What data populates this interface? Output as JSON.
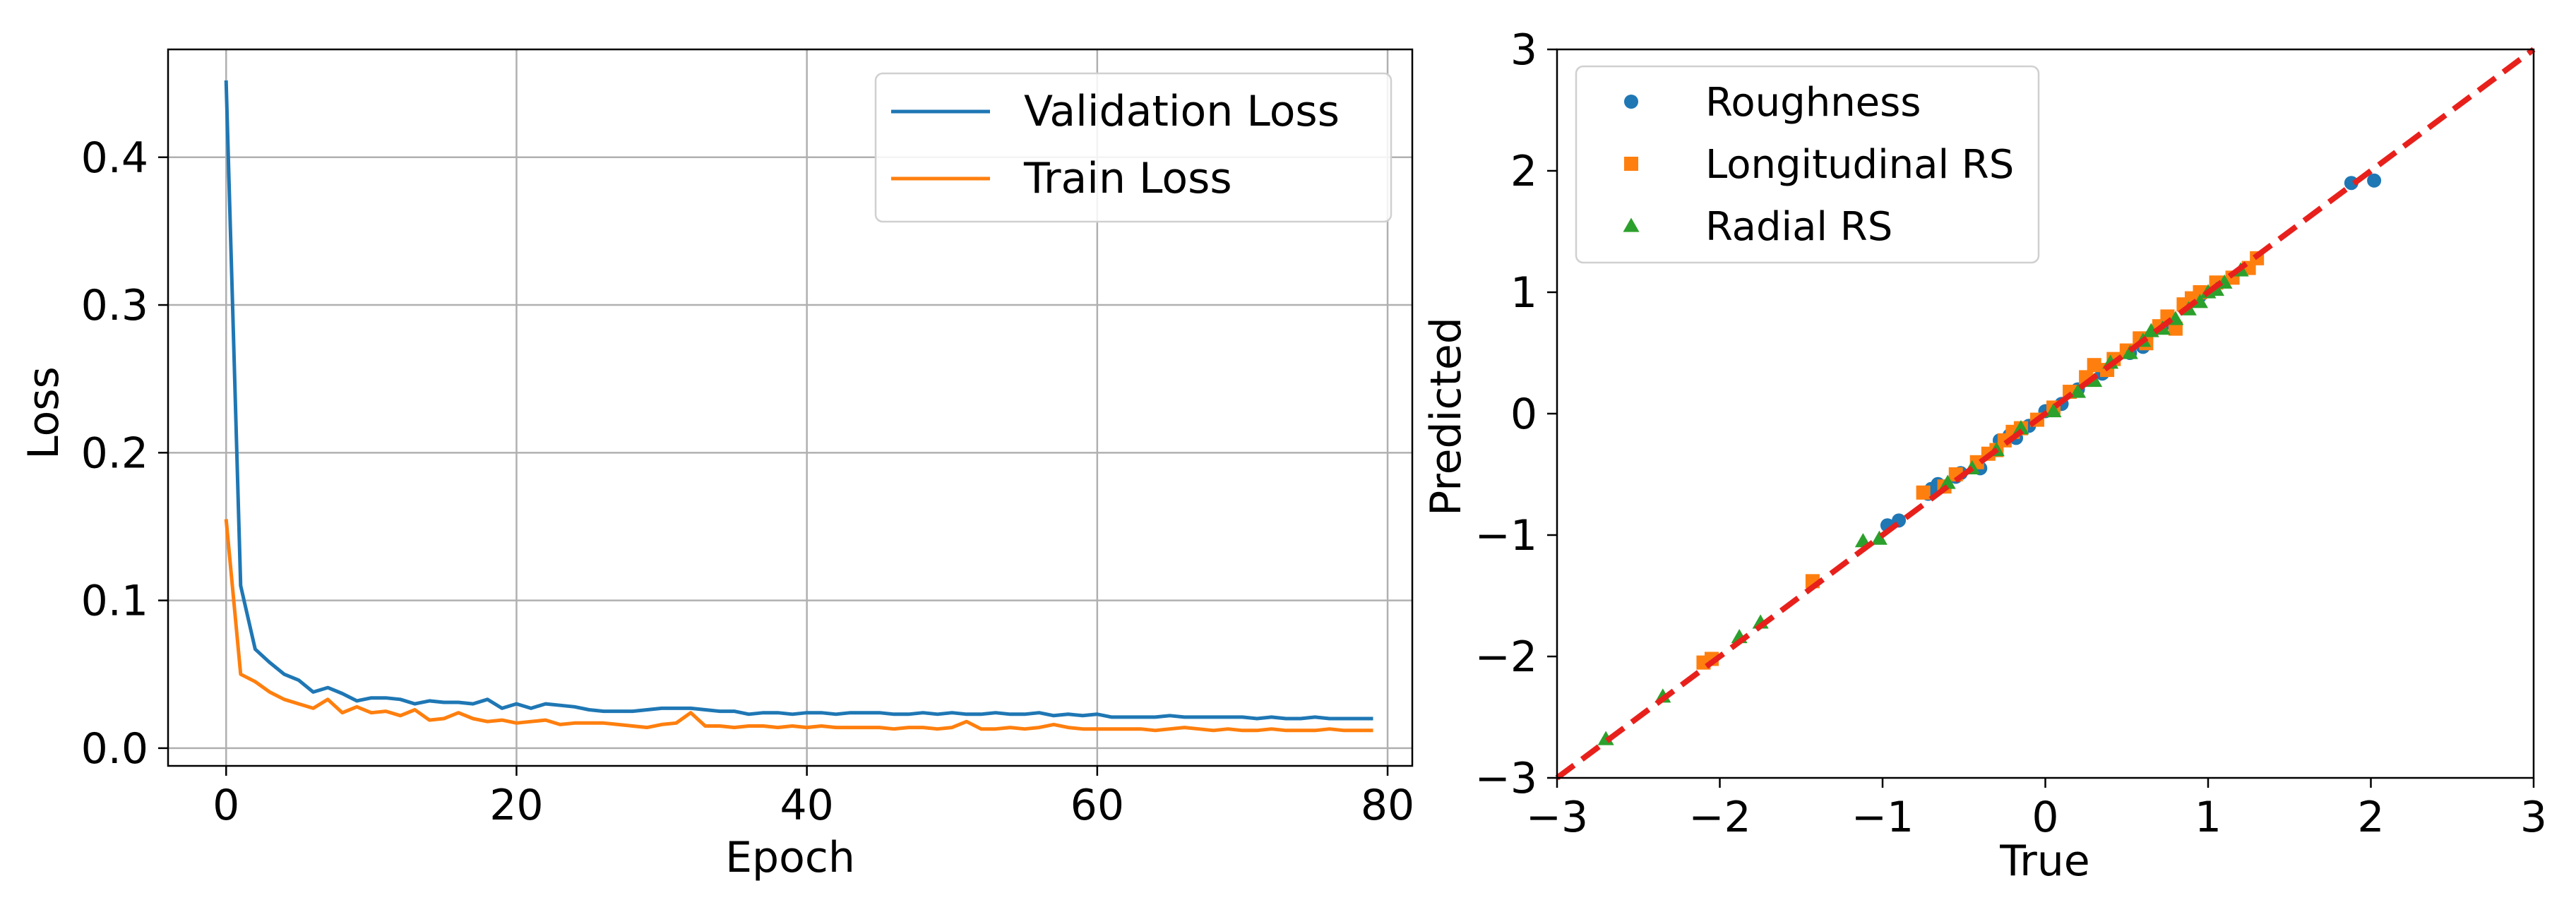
{
  "chart_data": [
    {
      "type": "line",
      "xlabel": "Epoch",
      "ylabel": "Loss",
      "xlim": [
        -4,
        81.7
      ],
      "ylim": [
        -0.012,
        0.473
      ],
      "xticks": [
        0,
        20,
        40,
        60,
        80
      ],
      "yticks": [
        0.0,
        0.1,
        0.2,
        0.3,
        0.4
      ],
      "xtick_labels": [
        "0",
        "20",
        "40",
        "60",
        "80"
      ],
      "ytick_labels": [
        "0.0",
        "0.1",
        "0.2",
        "0.3",
        "0.4"
      ],
      "grid": true,
      "legend_location": "upper right",
      "series": [
        {
          "name": "Validation Loss",
          "color": "#1f77b4",
          "x": [
            0,
            1,
            2,
            3,
            4,
            5,
            6,
            7,
            8,
            9,
            10,
            11,
            12,
            13,
            14,
            15,
            16,
            17,
            18,
            19,
            20,
            21,
            22,
            23,
            24,
            25,
            26,
            27,
            28,
            29,
            30,
            31,
            32,
            33,
            34,
            35,
            36,
            37,
            38,
            39,
            40,
            41,
            42,
            43,
            44,
            45,
            46,
            47,
            48,
            49,
            50,
            51,
            52,
            53,
            54,
            55,
            56,
            57,
            58,
            59,
            60,
            61,
            62,
            63,
            64,
            65,
            66,
            67,
            68,
            69,
            70,
            71,
            72,
            73,
            74,
            75,
            76,
            77,
            78,
            79
          ],
          "values": [
            0.452,
            0.11,
            0.067,
            0.058,
            0.05,
            0.046,
            0.038,
            0.041,
            0.037,
            0.032,
            0.034,
            0.034,
            0.033,
            0.03,
            0.032,
            0.031,
            0.031,
            0.03,
            0.033,
            0.027,
            0.03,
            0.027,
            0.03,
            0.029,
            0.028,
            0.026,
            0.025,
            0.025,
            0.025,
            0.026,
            0.027,
            0.027,
            0.027,
            0.026,
            0.025,
            0.025,
            0.023,
            0.024,
            0.024,
            0.023,
            0.024,
            0.024,
            0.023,
            0.024,
            0.024,
            0.024,
            0.023,
            0.023,
            0.024,
            0.023,
            0.024,
            0.023,
            0.023,
            0.024,
            0.023,
            0.023,
            0.024,
            0.022,
            0.023,
            0.022,
            0.023,
            0.021,
            0.021,
            0.021,
            0.021,
            0.022,
            0.021,
            0.021,
            0.021,
            0.021,
            0.021,
            0.02,
            0.021,
            0.02,
            0.02,
            0.021,
            0.02,
            0.02,
            0.02,
            0.02
          ]
        },
        {
          "name": "Train Loss",
          "color": "#ff7f0e",
          "x": [
            0,
            1,
            2,
            3,
            4,
            5,
            6,
            7,
            8,
            9,
            10,
            11,
            12,
            13,
            14,
            15,
            16,
            17,
            18,
            19,
            20,
            21,
            22,
            23,
            24,
            25,
            26,
            27,
            28,
            29,
            30,
            31,
            32,
            33,
            34,
            35,
            36,
            37,
            38,
            39,
            40,
            41,
            42,
            43,
            44,
            45,
            46,
            47,
            48,
            49,
            50,
            51,
            52,
            53,
            54,
            55,
            56,
            57,
            58,
            59,
            60,
            61,
            62,
            63,
            64,
            65,
            66,
            67,
            68,
            69,
            70,
            71,
            72,
            73,
            74,
            75,
            76,
            77,
            78,
            79
          ],
          "values": [
            0.155,
            0.05,
            0.045,
            0.038,
            0.033,
            0.03,
            0.027,
            0.033,
            0.024,
            0.028,
            0.024,
            0.025,
            0.022,
            0.026,
            0.019,
            0.02,
            0.024,
            0.02,
            0.018,
            0.019,
            0.017,
            0.018,
            0.019,
            0.016,
            0.017,
            0.017,
            0.017,
            0.016,
            0.015,
            0.014,
            0.016,
            0.017,
            0.024,
            0.015,
            0.015,
            0.014,
            0.015,
            0.015,
            0.014,
            0.015,
            0.014,
            0.015,
            0.014,
            0.014,
            0.014,
            0.014,
            0.013,
            0.014,
            0.014,
            0.013,
            0.014,
            0.018,
            0.013,
            0.013,
            0.014,
            0.013,
            0.014,
            0.016,
            0.014,
            0.013,
            0.013,
            0.013,
            0.013,
            0.013,
            0.012,
            0.013,
            0.014,
            0.013,
            0.012,
            0.013,
            0.012,
            0.012,
            0.013,
            0.012,
            0.012,
            0.012,
            0.013,
            0.012,
            0.012,
            0.012
          ]
        }
      ]
    },
    {
      "type": "scatter",
      "xlabel": "True",
      "ylabel": "Predicted",
      "xlim": [
        -3,
        3
      ],
      "ylim": [
        -3,
        3
      ],
      "xticks": [
        -3,
        -2,
        -1,
        0,
        1,
        2,
        3
      ],
      "yticks": [
        -3,
        -2,
        -1,
        0,
        1,
        2,
        3
      ],
      "xtick_labels": [
        "−3",
        "−2",
        "−1",
        "0",
        "1",
        "2",
        "3"
      ],
      "ytick_labels": [
        "−3",
        "−2",
        "−1",
        "0",
        "1",
        "2",
        "3"
      ],
      "grid": false,
      "legend_location": "upper left",
      "reference_line": {
        "style": "dashed",
        "color": "#e8201c",
        "from": [
          -3,
          -3
        ],
        "to": [
          3,
          3
        ]
      },
      "series": [
        {
          "name": "Roughness",
          "marker": "circle",
          "color": "#1f77b4",
          "points": [
            [
              2.02,
              1.92
            ],
            [
              1.88,
              1.9
            ],
            [
              -0.97,
              -0.92
            ],
            [
              -0.9,
              -0.88
            ],
            [
              -0.72,
              -0.66
            ],
            [
              -0.7,
              -0.62
            ],
            [
              -0.66,
              -0.58
            ],
            [
              -0.62,
              -0.6
            ],
            [
              -0.55,
              -0.52
            ],
            [
              -0.52,
              -0.49
            ],
            [
              -0.4,
              -0.45
            ],
            [
              -0.3,
              -0.3
            ],
            [
              -0.28,
              -0.22
            ],
            [
              -0.22,
              -0.18
            ],
            [
              -0.18,
              -0.2
            ],
            [
              -0.1,
              -0.1
            ],
            [
              0.0,
              0.02
            ],
            [
              0.1,
              0.08
            ],
            [
              0.2,
              0.2
            ],
            [
              0.35,
              0.33
            ],
            [
              0.52,
              0.5
            ],
            [
              0.6,
              0.55
            ],
            [
              0.75,
              0.75
            ],
            [
              0.85,
              0.88
            ],
            [
              0.95,
              0.97
            ]
          ]
        },
        {
          "name": "Longitudinal RS",
          "marker": "square",
          "color": "#ff7f0e",
          "points": [
            [
              -2.1,
              -2.05
            ],
            [
              -2.05,
              -2.02
            ],
            [
              -1.43,
              -1.38
            ],
            [
              -0.75,
              -0.65
            ],
            [
              -0.62,
              -0.6
            ],
            [
              -0.55,
              -0.5
            ],
            [
              -0.42,
              -0.4
            ],
            [
              -0.35,
              -0.33
            ],
            [
              -0.3,
              -0.3
            ],
            [
              -0.25,
              -0.22
            ],
            [
              -0.2,
              -0.15
            ],
            [
              -0.15,
              -0.12
            ],
            [
              -0.05,
              -0.05
            ],
            [
              0.05,
              0.05
            ],
            [
              0.15,
              0.18
            ],
            [
              0.25,
              0.3
            ],
            [
              0.3,
              0.4
            ],
            [
              0.38,
              0.36
            ],
            [
              0.42,
              0.45
            ],
            [
              0.5,
              0.52
            ],
            [
              0.58,
              0.62
            ],
            [
              0.62,
              0.58
            ],
            [
              0.7,
              0.72
            ],
            [
              0.75,
              0.8
            ],
            [
              0.8,
              0.7
            ],
            [
              0.85,
              0.9
            ],
            [
              0.9,
              0.95
            ],
            [
              0.95,
              1.0
            ],
            [
              1.05,
              1.08
            ],
            [
              1.15,
              1.12
            ],
            [
              1.25,
              1.2
            ],
            [
              1.3,
              1.28
            ]
          ]
        },
        {
          "name": "Radial RS",
          "marker": "triangle",
          "color": "#2ca02c",
          "points": [
            [
              -2.7,
              -2.68
            ],
            [
              -2.35,
              -2.33
            ],
            [
              -1.88,
              -1.84
            ],
            [
              -1.75,
              -1.72
            ],
            [
              -1.12,
              -1.05
            ],
            [
              -1.02,
              -1.03
            ],
            [
              -0.6,
              -0.57
            ],
            [
              -0.45,
              -0.45
            ],
            [
              -0.3,
              -0.3
            ],
            [
              -0.15,
              -0.12
            ],
            [
              0.05,
              0.02
            ],
            [
              0.2,
              0.18
            ],
            [
              0.3,
              0.27
            ],
            [
              0.4,
              0.42
            ],
            [
              0.52,
              0.5
            ],
            [
              0.6,
              0.6
            ],
            [
              0.65,
              0.68
            ],
            [
              0.72,
              0.7
            ],
            [
              0.8,
              0.78
            ],
            [
              0.88,
              0.86
            ],
            [
              0.95,
              0.92
            ],
            [
              1.0,
              1.0
            ],
            [
              1.05,
              1.02
            ],
            [
              1.1,
              1.08
            ],
            [
              1.2,
              1.18
            ]
          ]
        }
      ]
    }
  ]
}
